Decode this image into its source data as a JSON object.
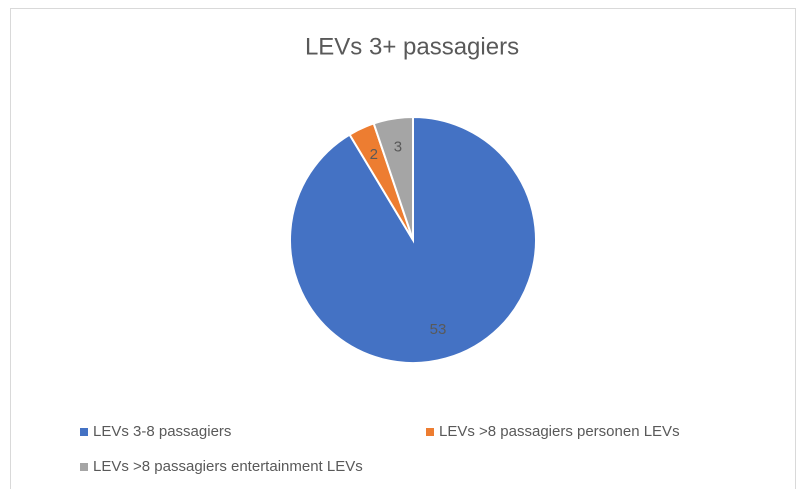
{
  "chart_data": {
    "type": "pie",
    "title": "LEVs 3+ passagiers",
    "categories": [
      "LEVs 3-8 passagiers",
      "LEVs >8 passagiers personen LEVs",
      "LEVs >8 passagiers entertainment LEVs"
    ],
    "values": [
      53,
      2,
      3
    ],
    "colors": [
      "#4472c4",
      "#ed7d31",
      "#a5a5a5"
    ]
  }
}
